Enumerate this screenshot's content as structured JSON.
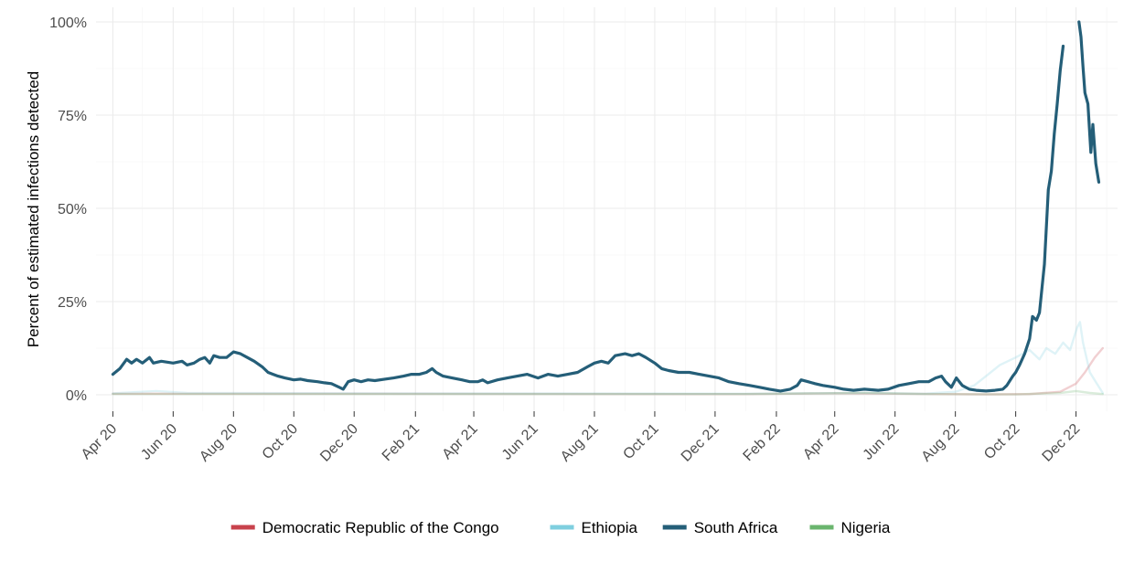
{
  "chart_data": {
    "type": "line",
    "title": "",
    "xlabel": "",
    "ylabel": "Percent of estimated infections detected",
    "x_tick_labels": [
      "Apr 20",
      "Jun 20",
      "Aug 20",
      "Oct 20",
      "Dec 20",
      "Feb 21",
      "Apr 21",
      "Jun 21",
      "Aug 21",
      "Oct 21",
      "Dec 21",
      "Feb 22",
      "Apr 22",
      "Jun 22",
      "Aug 22",
      "Oct 22",
      "Dec 22"
    ],
    "y_tick_labels": [
      "0%",
      "25%",
      "50%",
      "75%",
      "100%"
    ],
    "ylim": [
      0,
      100
    ],
    "xlim": [
      "2020-03-15",
      "2023-01-12"
    ],
    "grid": true,
    "legend_position": "bottom",
    "series": [
      {
        "name": "Democratic Republic of the Congo",
        "color": "#c8424c",
        "opacity": 0.25,
        "points": [
          [
            "2020-04-01",
            0.3
          ],
          [
            "2021-01-01",
            0.3
          ],
          [
            "2022-01-01",
            0.2
          ],
          [
            "2022-04-01",
            0.4
          ],
          [
            "2022-06-01",
            0.3
          ],
          [
            "2022-09-01",
            0.1
          ],
          [
            "2022-10-15",
            0.2
          ],
          [
            "2022-11-15",
            0.8
          ],
          [
            "2022-12-01",
            3.0
          ],
          [
            "2022-12-10",
            6.0
          ],
          [
            "2022-12-20",
            10.0
          ],
          [
            "2022-12-28",
            12.5
          ]
        ]
      },
      {
        "name": "Ethiopia",
        "color": "#7fcfdf",
        "opacity": 0.25,
        "points": [
          [
            "2020-04-01",
            0.4
          ],
          [
            "2020-05-15",
            1.0
          ],
          [
            "2020-06-15",
            0.5
          ],
          [
            "2021-01-01",
            0.4
          ],
          [
            "2022-01-01",
            0.3
          ],
          [
            "2022-05-01",
            0.5
          ],
          [
            "2022-07-01",
            0.3
          ],
          [
            "2022-08-01",
            0.8
          ],
          [
            "2022-08-20",
            2.5
          ],
          [
            "2022-09-01",
            5.0
          ],
          [
            "2022-09-15",
            8.0
          ],
          [
            "2022-10-01",
            10.0
          ],
          [
            "2022-10-15",
            12.0
          ],
          [
            "2022-10-25",
            9.5
          ],
          [
            "2022-11-01",
            12.5
          ],
          [
            "2022-11-10",
            11.0
          ],
          [
            "2022-11-18",
            14.0
          ],
          [
            "2022-11-25",
            12.0
          ],
          [
            "2022-12-02",
            18.0
          ],
          [
            "2022-12-05",
            19.5
          ],
          [
            "2022-12-08",
            14.0
          ],
          [
            "2022-12-15",
            6.0
          ],
          [
            "2022-12-22",
            3.0
          ],
          [
            "2022-12-28",
            0.5
          ]
        ]
      },
      {
        "name": "South Africa",
        "color": "#245e78",
        "opacity": 1,
        "points": [
          [
            "2020-04-01",
            5.5
          ],
          [
            "2020-04-08",
            7.0
          ],
          [
            "2020-04-15",
            9.5
          ],
          [
            "2020-04-20",
            8.5
          ],
          [
            "2020-04-25",
            9.5
          ],
          [
            "2020-05-01",
            8.5
          ],
          [
            "2020-05-08",
            10.0
          ],
          [
            "2020-05-12",
            8.5
          ],
          [
            "2020-05-20",
            9.0
          ],
          [
            "2020-06-01",
            8.5
          ],
          [
            "2020-06-10",
            9.0
          ],
          [
            "2020-06-15",
            8.0
          ],
          [
            "2020-06-22",
            8.5
          ],
          [
            "2020-06-28",
            9.5
          ],
          [
            "2020-07-03",
            10.0
          ],
          [
            "2020-07-08",
            8.5
          ],
          [
            "2020-07-12",
            10.5
          ],
          [
            "2020-07-18",
            10.0
          ],
          [
            "2020-07-25",
            10.0
          ],
          [
            "2020-08-01",
            11.5
          ],
          [
            "2020-08-08",
            11.0
          ],
          [
            "2020-08-15",
            10.0
          ],
          [
            "2020-08-22",
            9.0
          ],
          [
            "2020-08-30",
            7.5
          ],
          [
            "2020-09-05",
            6.0
          ],
          [
            "2020-09-10",
            5.5
          ],
          [
            "2020-09-15",
            5.0
          ],
          [
            "2020-09-22",
            4.5
          ],
          [
            "2020-10-01",
            4.0
          ],
          [
            "2020-10-08",
            4.2
          ],
          [
            "2020-10-15",
            3.8
          ],
          [
            "2020-10-25",
            3.5
          ],
          [
            "2020-11-01",
            3.2
          ],
          [
            "2020-11-08",
            3.0
          ],
          [
            "2020-11-12",
            2.5
          ],
          [
            "2020-11-16",
            2.0
          ],
          [
            "2020-11-20",
            1.5
          ],
          [
            "2020-11-25",
            3.5
          ],
          [
            "2020-12-01",
            4.0
          ],
          [
            "2020-12-08",
            3.5
          ],
          [
            "2020-12-15",
            4.0
          ],
          [
            "2020-12-22",
            3.8
          ],
          [
            "2021-01-01",
            4.2
          ],
          [
            "2021-01-10",
            4.5
          ],
          [
            "2021-01-20",
            5.0
          ],
          [
            "2021-01-28",
            5.5
          ],
          [
            "2021-02-05",
            5.5
          ],
          [
            "2021-02-12",
            6.0
          ],
          [
            "2021-02-18",
            7.0
          ],
          [
            "2021-02-22",
            6.0
          ],
          [
            "2021-03-01",
            5.0
          ],
          [
            "2021-03-10",
            4.5
          ],
          [
            "2021-03-20",
            4.0
          ],
          [
            "2021-03-28",
            3.5
          ],
          [
            "2021-04-05",
            3.5
          ],
          [
            "2021-04-10",
            4.0
          ],
          [
            "2021-04-15",
            3.2
          ],
          [
            "2021-04-25",
            4.0
          ],
          [
            "2021-05-05",
            4.5
          ],
          [
            "2021-05-15",
            5.0
          ],
          [
            "2021-05-25",
            5.5
          ],
          [
            "2021-06-05",
            4.5
          ],
          [
            "2021-06-15",
            5.5
          ],
          [
            "2021-06-25",
            5.0
          ],
          [
            "2021-07-05",
            5.5
          ],
          [
            "2021-07-15",
            6.0
          ],
          [
            "2021-07-25",
            7.5
          ],
          [
            "2021-08-01",
            8.5
          ],
          [
            "2021-08-08",
            9.0
          ],
          [
            "2021-08-15",
            8.5
          ],
          [
            "2021-08-22",
            10.5
          ],
          [
            "2021-09-01",
            11.0
          ],
          [
            "2021-09-08",
            10.5
          ],
          [
            "2021-09-15",
            11.0
          ],
          [
            "2021-09-22",
            10.0
          ],
          [
            "2021-10-01",
            8.5
          ],
          [
            "2021-10-08",
            7.0
          ],
          [
            "2021-10-15",
            6.5
          ],
          [
            "2021-10-25",
            6.0
          ],
          [
            "2021-11-05",
            6.0
          ],
          [
            "2021-11-15",
            5.5
          ],
          [
            "2021-11-25",
            5.0
          ],
          [
            "2021-12-05",
            4.5
          ],
          [
            "2021-12-15",
            3.5
          ],
          [
            "2021-12-25",
            3.0
          ],
          [
            "2022-01-05",
            2.5
          ],
          [
            "2022-01-15",
            2.0
          ],
          [
            "2022-01-25",
            1.5
          ],
          [
            "2022-02-05",
            1.0
          ],
          [
            "2022-02-15",
            1.5
          ],
          [
            "2022-02-22",
            2.5
          ],
          [
            "2022-02-26",
            4.0
          ],
          [
            "2022-03-05",
            3.5
          ],
          [
            "2022-03-12",
            3.0
          ],
          [
            "2022-03-20",
            2.5
          ],
          [
            "2022-04-01",
            2.0
          ],
          [
            "2022-04-10",
            1.5
          ],
          [
            "2022-04-20",
            1.2
          ],
          [
            "2022-05-01",
            1.5
          ],
          [
            "2022-05-15",
            1.2
          ],
          [
            "2022-05-25",
            1.5
          ],
          [
            "2022-06-05",
            2.5
          ],
          [
            "2022-06-15",
            3.0
          ],
          [
            "2022-06-25",
            3.5
          ],
          [
            "2022-07-05",
            3.5
          ],
          [
            "2022-07-12",
            4.5
          ],
          [
            "2022-07-18",
            5.0
          ],
          [
            "2022-07-22",
            3.5
          ],
          [
            "2022-07-28",
            2.0
          ],
          [
            "2022-08-02",
            4.5
          ],
          [
            "2022-08-08",
            2.5
          ],
          [
            "2022-08-15",
            1.5
          ],
          [
            "2022-08-22",
            1.2
          ],
          [
            "2022-09-01",
            1.0
          ],
          [
            "2022-09-10",
            1.2
          ],
          [
            "2022-09-18",
            1.5
          ],
          [
            "2022-09-22",
            2.5
          ],
          [
            "2022-09-28",
            5.0
          ],
          [
            "2022-10-01",
            6.0
          ],
          [
            "2022-10-05",
            8.0
          ],
          [
            "2022-10-10",
            11.0
          ],
          [
            "2022-10-15",
            15.0
          ],
          [
            "2022-10-18",
            21.0
          ],
          [
            "2022-10-22",
            20.0
          ],
          [
            "2022-10-25",
            22.0
          ],
          [
            "2022-10-30",
            35.0
          ],
          [
            "2022-11-03",
            55.0
          ],
          [
            "2022-11-06",
            60.0
          ],
          [
            "2022-11-09",
            70.0
          ],
          [
            "2022-11-12",
            78.0
          ],
          [
            "2022-11-15",
            87.0
          ],
          [
            "2022-11-18",
            93.5
          ],
          [
            null,
            null
          ],
          [
            "2022-12-04",
            100.0
          ],
          [
            "2022-12-06",
            96.0
          ],
          [
            "2022-12-08",
            88.0
          ],
          [
            "2022-12-10",
            81.0
          ],
          [
            "2022-12-13",
            78.0
          ],
          [
            "2022-12-16",
            65.0
          ],
          [
            "2022-12-18",
            72.5
          ],
          [
            "2022-12-21",
            62.0
          ],
          [
            "2022-12-24",
            57.0
          ]
        ]
      },
      {
        "name": "Nigeria",
        "color": "#6ab56e",
        "opacity": 0.25,
        "points": [
          [
            "2020-04-01",
            0.2
          ],
          [
            "2021-01-01",
            0.2
          ],
          [
            "2022-01-01",
            0.2
          ],
          [
            "2022-05-01",
            0.5
          ],
          [
            "2022-07-01",
            0.2
          ],
          [
            "2022-10-01",
            0.1
          ],
          [
            "2022-11-15",
            0.5
          ],
          [
            "2022-12-01",
            1.0
          ],
          [
            "2022-12-15",
            0.5
          ],
          [
            "2022-12-28",
            0.2
          ]
        ]
      }
    ]
  }
}
